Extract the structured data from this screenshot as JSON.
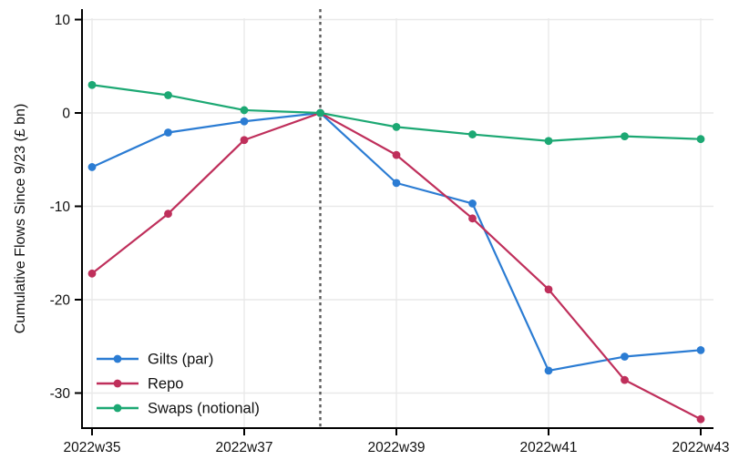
{
  "chart_data": {
    "type": "line",
    "title": "",
    "xlabel": "",
    "ylabel": "Cumulative Flows Since 9/23 (£ bn)",
    "grid": true,
    "legend_position": "inside-bottom-left",
    "x_weeks": [
      35,
      36,
      37,
      38,
      39,
      40,
      41,
      42,
      43
    ],
    "x_tick_weeks": [
      35,
      37,
      39,
      41,
      43
    ],
    "x_tick_labels": [
      "2022w35",
      "2022w37",
      "2022w39",
      "2022w41",
      "2022w43"
    ],
    "y_ticks": [
      10,
      0,
      -10,
      -20,
      -30
    ],
    "y_tick_labels": [
      "10",
      "0",
      "-10",
      "-20",
      "-30"
    ],
    "ylim": [
      -34,
      11.1
    ],
    "xlim": [
      34.87,
      43.17
    ],
    "reference_line": {
      "x_week": 38,
      "style": "dashed",
      "color": "#5a5a5a"
    },
    "series": [
      {
        "name": "Gilts (par)",
        "color": "#2b7cd3",
        "values": [
          -5.8,
          -2.1,
          -0.9,
          0,
          -7.5,
          -9.7,
          -27.6,
          -26.1,
          -25.4
        ]
      },
      {
        "name": "Repo",
        "color": "#bf2f5b",
        "values": [
          -17.2,
          -10.8,
          -2.9,
          0,
          -4.5,
          -11.3,
          -18.9,
          -28.6,
          -32.8
        ]
      },
      {
        "name": "Swaps (notional)",
        "color": "#1ca873",
        "values": [
          3.0,
          1.9,
          0.3,
          0,
          -1.5,
          -2.3,
          -3.0,
          -2.5,
          -2.8
        ]
      }
    ],
    "colors": {
      "grid": "#e9e9e9",
      "axis": "#000000",
      "text": "#111111",
      "reference_line": "#5a5a5a"
    }
  }
}
